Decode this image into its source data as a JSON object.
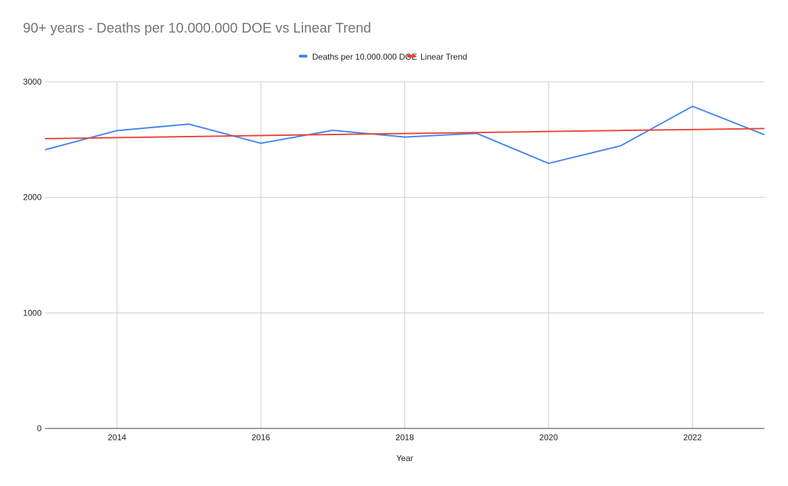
{
  "chart_data": {
    "type": "line",
    "title": "90+ years - Deaths per 10.000.000 DOE vs Linear Trend",
    "xlabel": "Year",
    "ylabel": "",
    "xlim": [
      2013,
      2023
    ],
    "ylim": [
      0,
      3000
    ],
    "x_ticks": [
      "2014",
      "2016",
      "2018",
      "2020",
      "2022"
    ],
    "y_ticks": [
      "0",
      "1000",
      "2000",
      "3000"
    ],
    "grid": true,
    "legend_position": "top",
    "x": [
      2013,
      2014,
      2015,
      2016,
      2017,
      2018,
      2019,
      2020,
      2021,
      2022,
      2023
    ],
    "series": [
      {
        "name": "Deaths per 10.000.000 DOE",
        "color": "#4285f4",
        "values": [
          2412,
          2578,
          2634,
          2468,
          2580,
          2522,
          2554,
          2294,
          2446,
          2788,
          2542
        ]
      },
      {
        "name": "Linear Trend",
        "color": "#ea4335",
        "values": [
          2508,
          2517,
          2526,
          2535,
          2544,
          2552,
          2561,
          2570,
          2579,
          2587,
          2596
        ]
      }
    ]
  }
}
